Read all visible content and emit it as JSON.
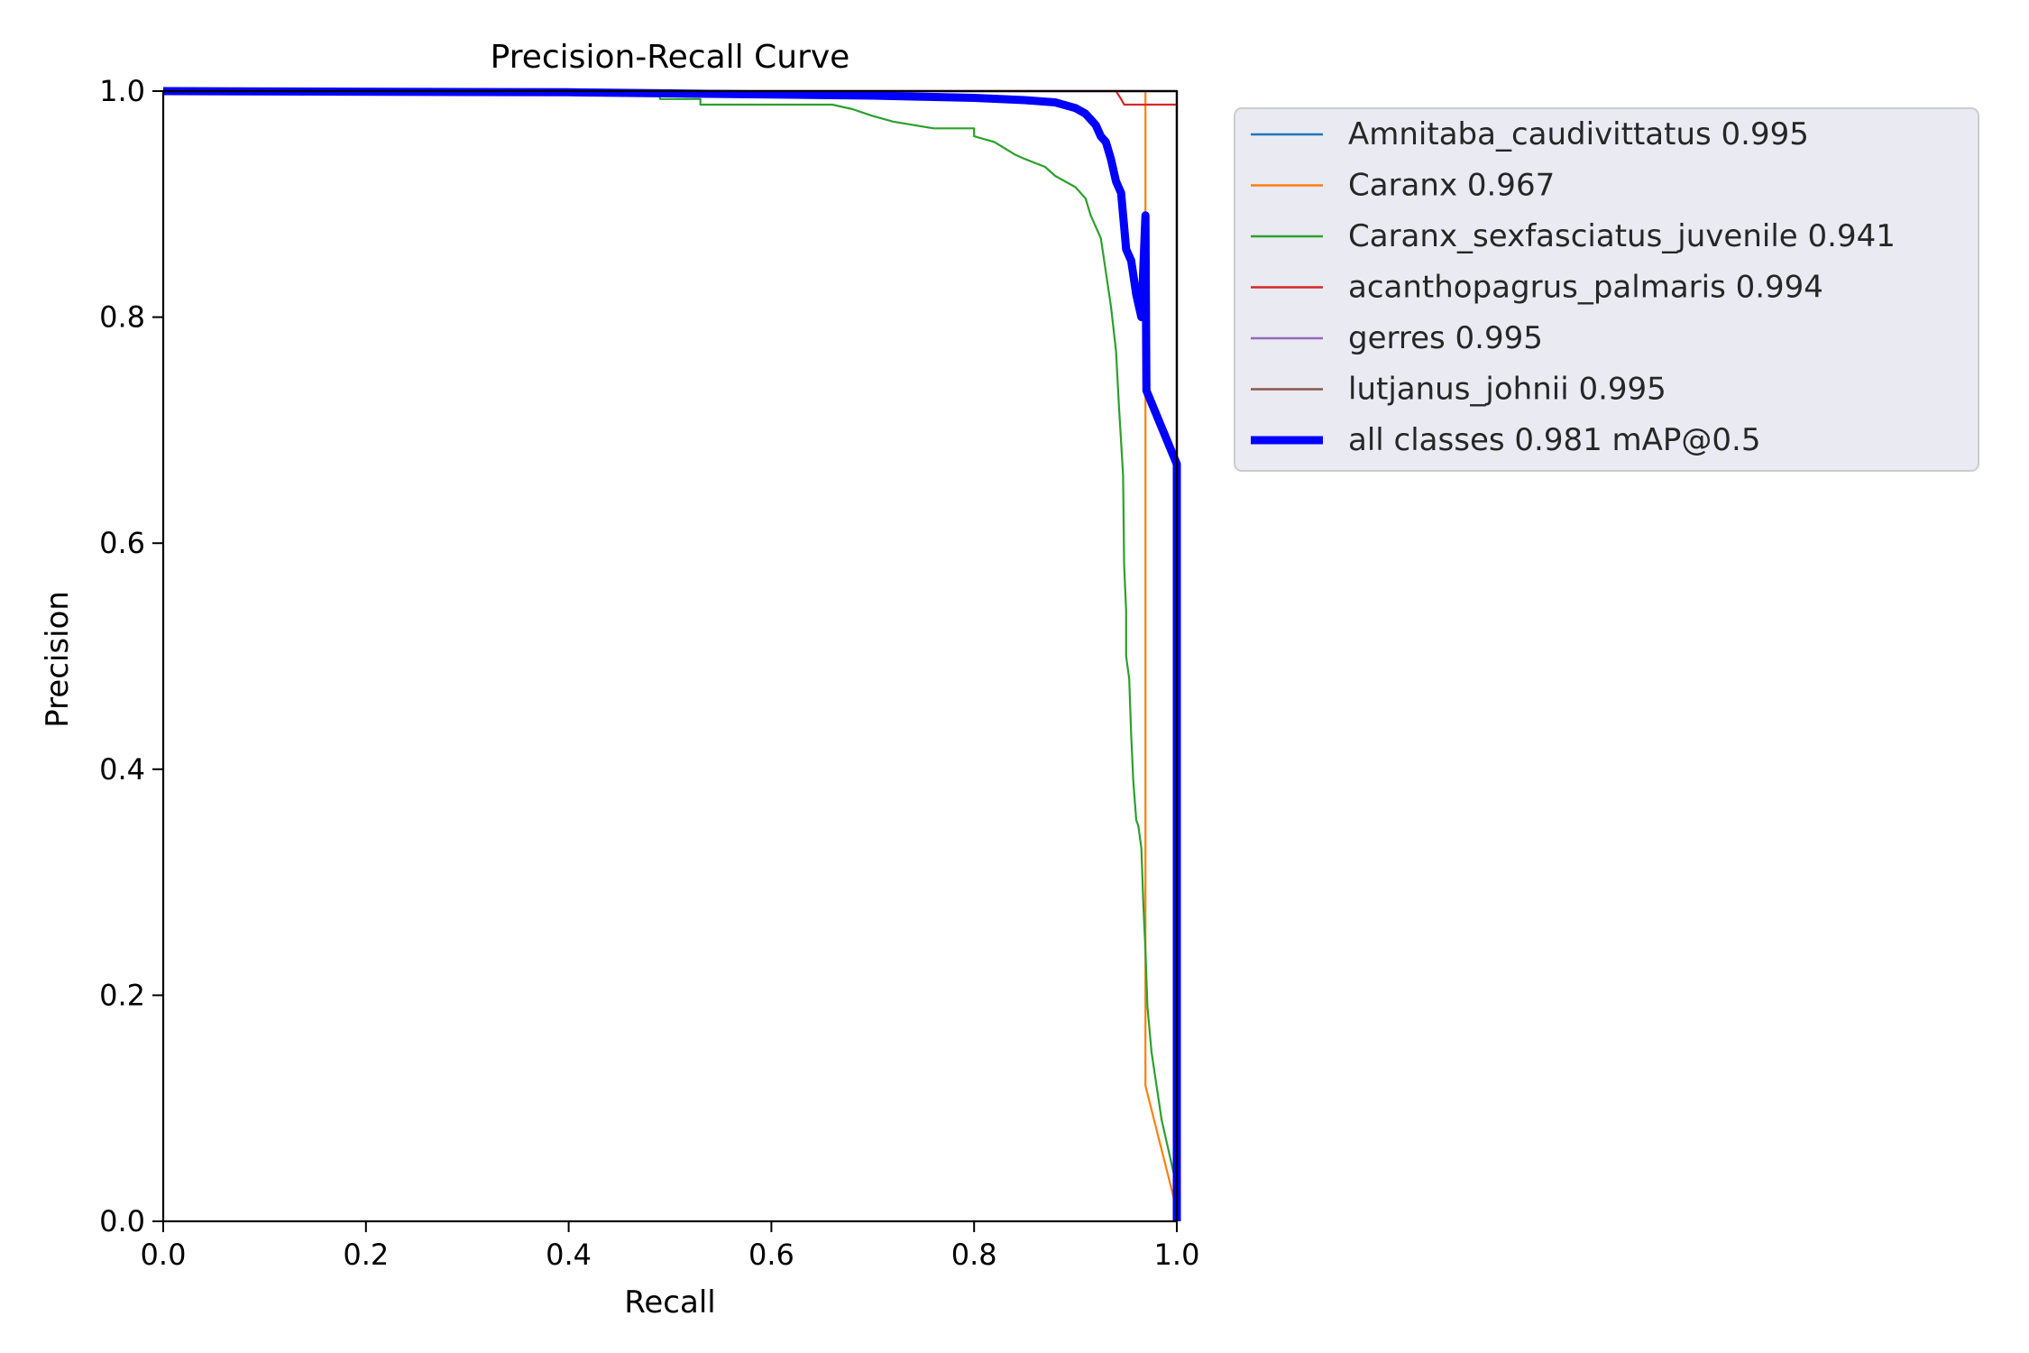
{
  "chart_data": {
    "type": "line",
    "title": "Precision-Recall Curve",
    "xlabel": "Recall",
    "ylabel": "Precision",
    "xlim": [
      0.0,
      1.0
    ],
    "ylim": [
      0.0,
      1.0
    ],
    "xticks": [
      "0.0",
      "0.2",
      "0.4",
      "0.6",
      "0.8",
      "1.0"
    ],
    "yticks": [
      "0.0",
      "0.2",
      "0.4",
      "0.6",
      "0.8",
      "1.0"
    ],
    "grid": false,
    "legend_position": "outside upper right",
    "series": [
      {
        "name": "Amnitaba_caudivittatus 0.995",
        "color": "#1f77b4",
        "x": [
          0.0,
          1.0,
          1.0
        ],
        "y": [
          1.0,
          1.0,
          0.0
        ]
      },
      {
        "name": "Caranx 0.967",
        "color": "#ff7f0e",
        "x": [
          0.0,
          0.969,
          0.969,
          1.0
        ],
        "y": [
          1.0,
          1.0,
          0.12,
          0.01
        ]
      },
      {
        "name": "Caranx_sexfasciatus_juvenile 0.941",
        "color": "#2ca02c",
        "x": [
          0.0,
          0.41,
          0.49,
          0.49,
          0.53,
          0.53,
          0.66,
          0.68,
          0.7,
          0.72,
          0.74,
          0.76,
          0.8,
          0.8,
          0.82,
          0.84,
          0.85,
          0.87,
          0.88,
          0.9,
          0.91,
          0.915,
          0.925,
          0.93,
          0.935,
          0.94,
          0.943,
          0.945,
          0.947,
          0.948,
          0.95,
          0.95,
          0.953,
          0.955,
          0.957,
          0.96,
          0.962,
          0.965,
          0.967,
          0.969,
          0.971,
          0.975,
          0.985,
          0.995,
          1.0
        ],
        "y": [
          1.0,
          1.0,
          0.997,
          0.993,
          0.993,
          0.988,
          0.988,
          0.984,
          0.978,
          0.973,
          0.97,
          0.967,
          0.967,
          0.96,
          0.955,
          0.944,
          0.94,
          0.933,
          0.925,
          0.915,
          0.905,
          0.89,
          0.87,
          0.84,
          0.81,
          0.77,
          0.72,
          0.69,
          0.66,
          0.58,
          0.54,
          0.5,
          0.48,
          0.43,
          0.39,
          0.355,
          0.35,
          0.33,
          0.28,
          0.24,
          0.19,
          0.15,
          0.09,
          0.05,
          0.03
        ]
      },
      {
        "name": "acanthopagrus_palmaris 0.994",
        "color": "#d62728",
        "x": [
          0.0,
          0.94,
          0.945,
          0.948,
          1.0,
          1.0
        ],
        "y": [
          1.0,
          1.0,
          0.993,
          0.988,
          0.988,
          0.0
        ]
      },
      {
        "name": "gerres 0.995",
        "color": "#9467bd",
        "x": [
          0.0,
          1.0,
          1.0
        ],
        "y": [
          1.0,
          1.0,
          0.0
        ]
      },
      {
        "name": "lutjanus_johnii 0.995",
        "color": "#8c564b",
        "x": [
          0.0,
          1.0,
          1.0
        ],
        "y": [
          1.0,
          1.0,
          0.0
        ]
      },
      {
        "name": "all classes 0.981 mAP@0.5",
        "color": "#0000ff",
        "thick": true,
        "x": [
          0.0,
          0.4,
          0.5,
          0.6,
          0.7,
          0.75,
          0.8,
          0.85,
          0.88,
          0.9,
          0.91,
          0.92,
          0.925,
          0.93,
          0.935,
          0.94,
          0.945,
          0.948,
          0.95,
          0.955,
          0.96,
          0.965,
          0.969,
          0.97,
          1.0,
          1.0
        ],
        "y": [
          1.0,
          0.999,
          0.998,
          0.997,
          0.996,
          0.995,
          0.994,
          0.992,
          0.99,
          0.985,
          0.98,
          0.97,
          0.96,
          0.955,
          0.94,
          0.92,
          0.91,
          0.88,
          0.86,
          0.85,
          0.82,
          0.8,
          0.89,
          0.735,
          0.67,
          0.0
        ]
      }
    ]
  }
}
